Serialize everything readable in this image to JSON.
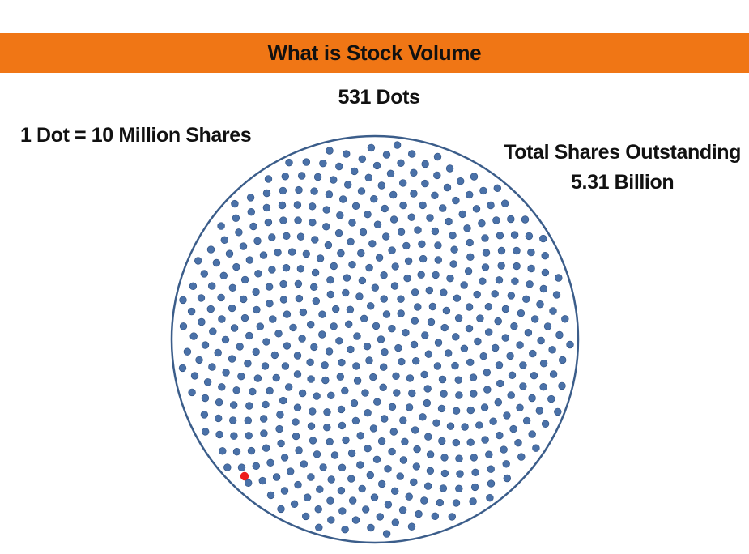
{
  "title": "What is Stock Volume",
  "dot_count_label": "531 Dots",
  "legend_label": "1 Dot = 10 Million Shares",
  "total_label_line1": "Total Shares Outstanding",
  "total_label_line2": "5.31 Billion",
  "dots": {
    "total": 531,
    "highlighted": 1
  },
  "colors": {
    "banner": "#f07615",
    "dot": "#4a71a8",
    "dot_outline": "#2d4f80",
    "circle_outline": "#3b5d8a",
    "highlight_dot": "#ee1c1c"
  }
}
